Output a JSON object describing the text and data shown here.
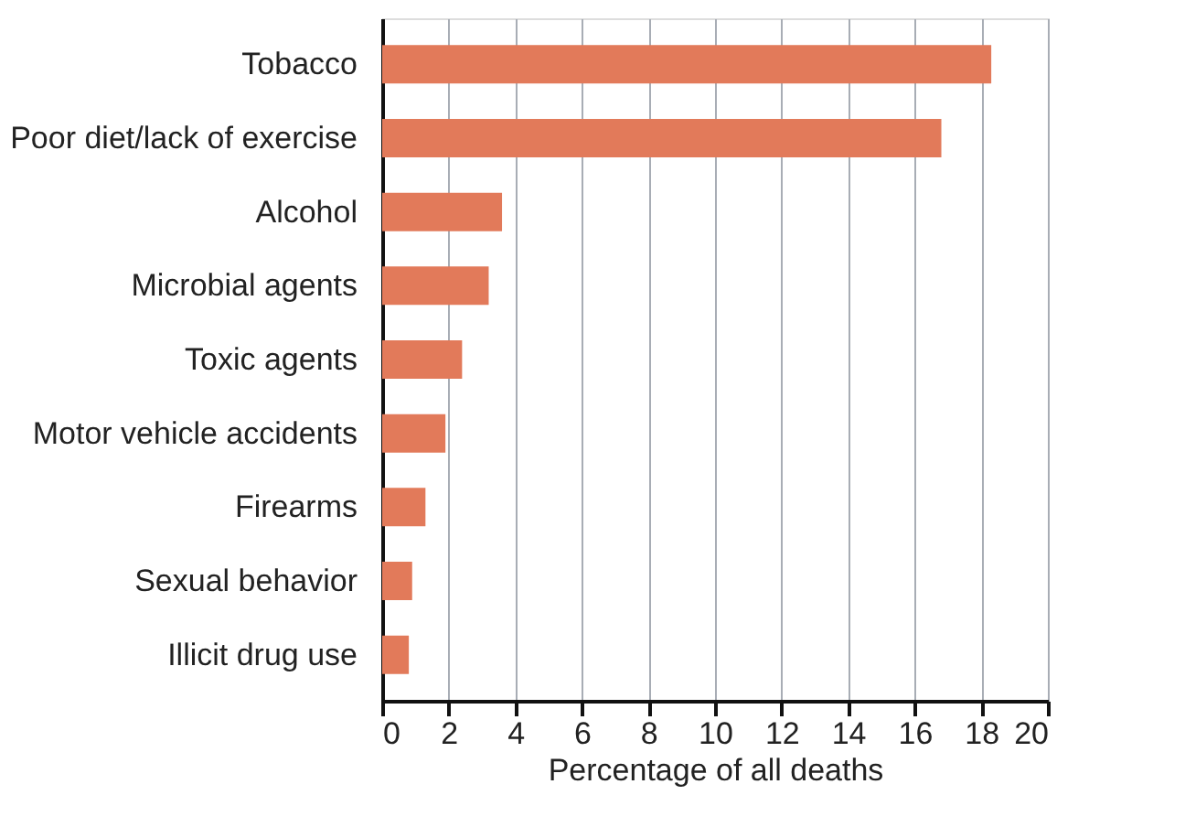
{
  "chart_data": {
    "type": "bar",
    "orientation": "horizontal",
    "xlabel": "Percentage of all deaths",
    "categories": [
      "Tobacco",
      "Poor diet/lack of exercise",
      "Alcohol",
      "Microbial agents",
      "Toxic agents",
      "Motor vehicle accidents",
      "Firearms",
      "Sexual behavior",
      "Illicit drug use"
    ],
    "values": [
      18.3,
      16.8,
      3.6,
      3.2,
      2.4,
      1.9,
      1.3,
      0.9,
      0.8
    ],
    "color": "#e27a5a",
    "xlim": [
      0,
      20
    ],
    "xticks": [
      0,
      2,
      4,
      6,
      8,
      10,
      12,
      14,
      16,
      18,
      20
    ],
    "grid": "x"
  }
}
